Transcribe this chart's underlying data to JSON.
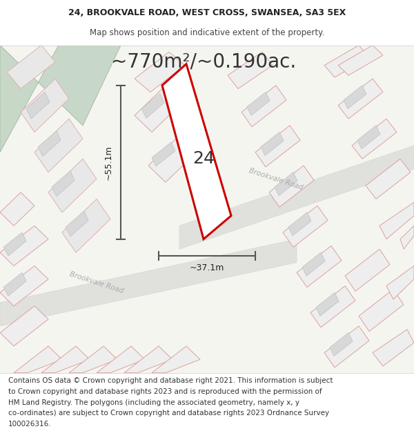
{
  "title_line1": "24, BROOKVALE ROAD, WEST CROSS, SWANSEA, SA3 5EX",
  "title_line2": "Map shows position and indicative extent of the property.",
  "area_text": "~770m²/~0.190ac.",
  "label_number": "24",
  "dim_height": "~55.1m",
  "dim_width": "~37.1m",
  "road_label1": "Brookvale Road",
  "road_label2": "Brookvale Road",
  "footer_lines": [
    "Contains OS data © Crown copyright and database right 2021. This information is subject",
    "to Crown copyright and database rights 2023 and is reproduced with the permission of",
    "HM Land Registry. The polygons (including the associated geometry, namely x, y",
    "co-ordinates) are subject to Crown copyright and database rights 2023 Ordnance Survey",
    "100026316."
  ],
  "map_bg": "#f5f5f0",
  "green_patch_color": "#c8d8c8",
  "highlight_color": "#cc0000",
  "dim_line_color": "#555555",
  "title_fontsize": 9,
  "area_fontsize": 20,
  "number_fontsize": 18,
  "footer_fontsize": 7.5
}
